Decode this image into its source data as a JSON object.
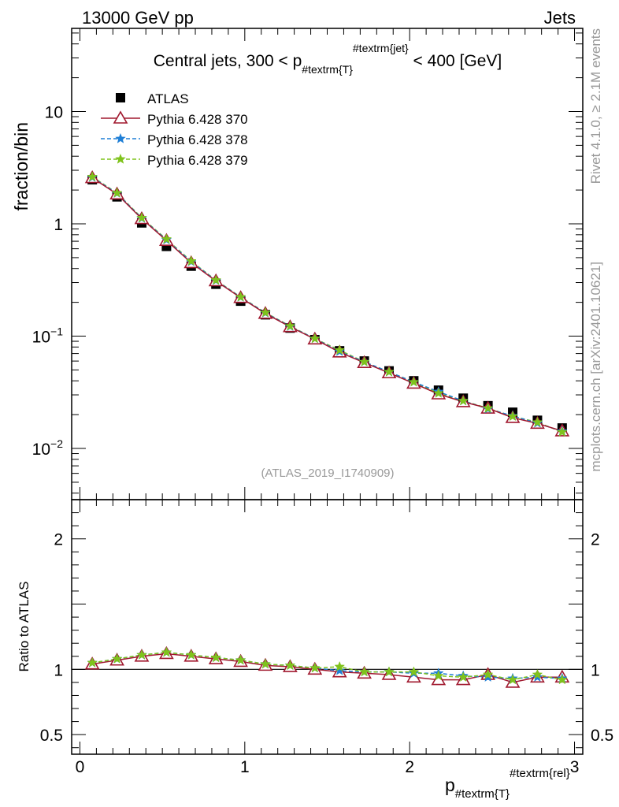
{
  "header": {
    "energy": "13000 GeV pp",
    "category": "Jets"
  },
  "side_labels": {
    "rivet": "Rivet 4.1.0, ≥ 2.1M events",
    "mcplots": "mcplots.cern.ch [arXiv:2401.10621]"
  },
  "chart_data": [
    {
      "type": "scatter",
      "panel": "main",
      "title": {
        "prefix": "Central jets, 300 < p",
        "sub": "#textrm{T}",
        "sup": "#textrm{jet}",
        "suffix": " < 400 [GeV]"
      },
      "ylabel": "fraction/bin",
      "yscale": "log",
      "ylim": [
        0.0035,
        55
      ],
      "xlim": [
        -0.05,
        3.05
      ],
      "y_ticks": [
        {
          "value": 10,
          "label": "10"
        },
        {
          "value": 1,
          "label": "1"
        },
        {
          "value": 0.1,
          "base": "10",
          "exp": "−1"
        },
        {
          "value": 0.01,
          "base": "10",
          "exp": "−2"
        }
      ],
      "watermark": "(ATLAS_2019_I1740909)",
      "legend": [
        {
          "name": "ATLAS",
          "marker": "square",
          "color": "#000000"
        },
        {
          "name": "Pythia 6.428 370",
          "marker": "triangle",
          "color": "#a0182e"
        },
        {
          "name": "Pythia 6.428 378",
          "marker": "star",
          "color": "#1f7fd6"
        },
        {
          "name": "Pythia 6.428 379",
          "marker": "star",
          "color": "#7fc31c"
        }
      ],
      "x": [
        0.075,
        0.225,
        0.375,
        0.525,
        0.675,
        0.825,
        0.975,
        1.125,
        1.275,
        1.425,
        1.575,
        1.725,
        1.875,
        2.025,
        2.175,
        2.325,
        2.475,
        2.625,
        2.775,
        2.925
      ],
      "series": [
        {
          "name": "ATLAS",
          "values": [
            2.47,
            1.74,
            1.02,
            0.63,
            0.42,
            0.29,
            0.205,
            0.155,
            0.118,
            0.093,
            0.074,
            0.06,
            0.049,
            0.04,
            0.033,
            0.028,
            0.024,
            0.021,
            0.0178,
            0.0152
          ]
        },
        {
          "name": "Pythia 6.428 370",
          "values": [
            2.57,
            1.84,
            1.11,
            0.71,
            0.45,
            0.31,
            0.22,
            0.159,
            0.121,
            0.094,
            0.072,
            0.058,
            0.047,
            0.038,
            0.0305,
            0.026,
            0.0228,
            0.0188,
            0.0167,
            0.0143
          ]
        },
        {
          "name": "Pythia 6.428 378",
          "values": [
            2.59,
            1.87,
            1.12,
            0.72,
            0.46,
            0.313,
            0.222,
            0.161,
            0.122,
            0.095,
            0.073,
            0.059,
            0.048,
            0.039,
            0.032,
            0.0265,
            0.0225,
            0.0195,
            0.0168,
            0.0142
          ]
        },
        {
          "name": "Pythia 6.428 379",
          "values": [
            2.62,
            1.88,
            1.13,
            0.73,
            0.465,
            0.315,
            0.223,
            0.162,
            0.123,
            0.095,
            0.075,
            0.059,
            0.048,
            0.039,
            0.031,
            0.0265,
            0.0228,
            0.0193,
            0.0171,
            0.014
          ]
        }
      ]
    },
    {
      "type": "line",
      "panel": "ratio",
      "ylabel": "Ratio to ATLAS",
      "xlabel": {
        "base": "p",
        "sub": "#textrm{T}",
        "sup": "#textrm{rel}"
      },
      "ylim": [
        0.35,
        2.3
      ],
      "xlim": [
        -0.05,
        3.05
      ],
      "y_ticks": [
        0.5,
        1,
        2
      ],
      "x_ticks": [
        0,
        1,
        2,
        3
      ],
      "reference_line": 1,
      "x": [
        0.075,
        0.225,
        0.375,
        0.525,
        0.675,
        0.825,
        0.975,
        1.125,
        1.275,
        1.425,
        1.575,
        1.725,
        1.875,
        2.025,
        2.175,
        2.325,
        2.475,
        2.625,
        2.775,
        2.925
      ],
      "series": [
        {
          "name": "Pythia 6.428 370",
          "values": [
            1.04,
            1.07,
            1.1,
            1.12,
            1.1,
            1.08,
            1.06,
            1.03,
            1.02,
            1.0,
            0.98,
            0.97,
            0.96,
            0.94,
            0.92,
            0.92,
            0.96,
            0.9,
            0.94,
            0.94
          ]
        },
        {
          "name": "Pythia 6.428 378",
          "values": [
            1.05,
            1.08,
            1.11,
            1.13,
            1.11,
            1.09,
            1.07,
            1.04,
            1.03,
            1.01,
            0.99,
            0.98,
            0.98,
            0.97,
            0.97,
            0.95,
            0.94,
            0.93,
            0.94,
            0.93
          ]
        },
        {
          "name": "Pythia 6.428 379",
          "values": [
            1.05,
            1.08,
            1.11,
            1.13,
            1.11,
            1.09,
            1.07,
            1.04,
            1.03,
            1.01,
            1.02,
            0.98,
            0.98,
            0.98,
            0.95,
            0.94,
            0.96,
            0.92,
            0.96,
            0.92
          ]
        }
      ]
    }
  ]
}
